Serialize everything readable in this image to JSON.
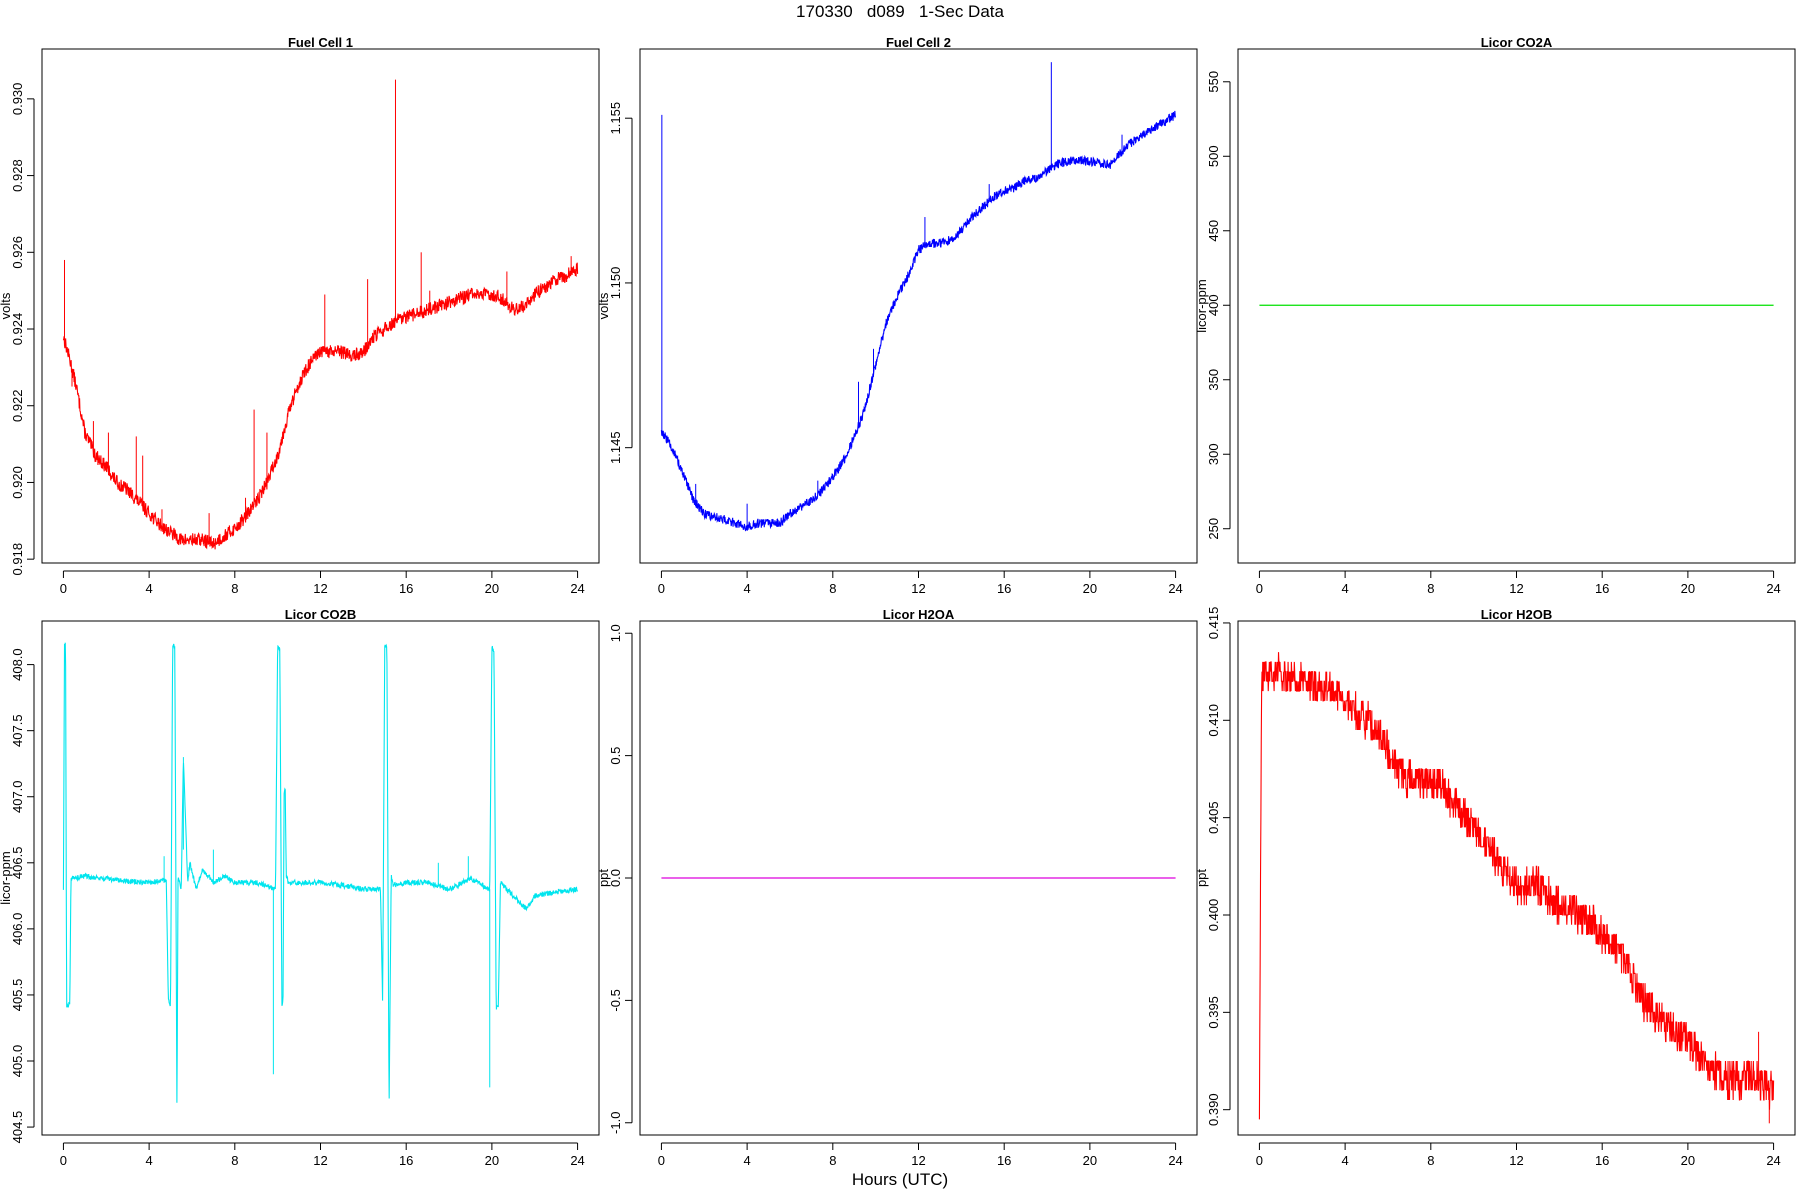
{
  "page_title": "170330   d089   1-Sec Data",
  "x_axis_label": "Hours (UTC)",
  "chart_data": [
    {
      "type": "line",
      "title": "Fuel Cell 1",
      "ylabel": "volts",
      "xlim": [
        -1,
        25
      ],
      "ylim": [
        0.9179,
        0.9313
      ],
      "xticks": [
        0,
        4,
        8,
        12,
        16,
        20,
        24
      ],
      "yticks": [
        0.918,
        0.92,
        0.922,
        0.924,
        0.926,
        0.928,
        0.93
      ],
      "ytick_labels": [
        "0.918",
        "0.920",
        "0.922",
        "0.924",
        "0.926",
        "0.928",
        "0.930"
      ],
      "color": "#ff0000",
      "x": [
        0,
        0.3,
        0.6,
        1,
        1.5,
        2,
        2.5,
        3,
        3.5,
        4,
        4.5,
        5,
        5.5,
        6,
        6.5,
        7,
        7.5,
        8,
        8.5,
        9,
        9.5,
        10,
        10.5,
        11,
        11.5,
        12,
        12.5,
        13,
        13.5,
        14,
        14.5,
        15,
        15.5,
        16,
        16.5,
        17,
        17.5,
        18,
        18.5,
        19,
        19.5,
        20,
        20.5,
        21,
        21.5,
        22,
        22.5,
        23,
        23.5,
        24
      ],
      "y": [
        0.9238,
        0.9232,
        0.9225,
        0.9213,
        0.9207,
        0.9204,
        0.92,
        0.9198,
        0.9195,
        0.9192,
        0.9189,
        0.9187,
        0.9185,
        0.9185,
        0.9185,
        0.9184,
        0.9186,
        0.9188,
        0.9191,
        0.9195,
        0.92,
        0.9207,
        0.9218,
        0.9226,
        0.9231,
        0.9234,
        0.9234,
        0.9234,
        0.9233,
        0.9234,
        0.9238,
        0.924,
        0.9242,
        0.9243,
        0.9244,
        0.9245,
        0.9246,
        0.9247,
        0.9248,
        0.9249,
        0.9249,
        0.9249,
        0.9248,
        0.9245,
        0.9246,
        0.9249,
        0.9251,
        0.9253,
        0.9254,
        0.9256
      ],
      "noise": 0.00018,
      "spikes": [
        [
          0.05,
          0.9258
        ],
        [
          0.4,
          0.9225
        ],
        [
          1.4,
          0.9216
        ],
        [
          2.1,
          0.9213
        ],
        [
          3.4,
          0.9212
        ],
        [
          3.7,
          0.9207
        ],
        [
          4.6,
          0.9193
        ],
        [
          6.8,
          0.9192
        ],
        [
          8.5,
          0.9196
        ],
        [
          8.9,
          0.9219
        ],
        [
          9.5,
          0.9213
        ],
        [
          12.2,
          0.9249
        ],
        [
          14.2,
          0.9253
        ],
        [
          15.5,
          0.9305
        ],
        [
          16.7,
          0.926
        ],
        [
          17.1,
          0.925
        ],
        [
          20.7,
          0.9255
        ],
        [
          23.7,
          0.9259
        ]
      ]
    },
    {
      "type": "line",
      "title": "Fuel Cell 2",
      "ylabel": "volts",
      "xlim": [
        -1,
        25
      ],
      "ylim": [
        1.1415,
        1.1571
      ],
      "xticks": [
        0,
        4,
        8,
        12,
        16,
        20,
        24
      ],
      "yticks": [
        1.145,
        1.15,
        1.155
      ],
      "ytick_labels": [
        "1.145",
        "1.150",
        "1.155"
      ],
      "color": "#0000ff",
      "x": [
        0,
        0.5,
        1,
        1.5,
        2,
        2.5,
        3,
        3.5,
        4,
        4.5,
        5,
        5.5,
        6,
        6.5,
        7,
        7.5,
        8,
        8.5,
        9,
        9.5,
        10,
        10.5,
        11,
        11.5,
        12,
        12.5,
        13,
        13.5,
        14,
        14.5,
        15,
        15.5,
        16,
        16.5,
        17,
        17.5,
        18,
        18.5,
        19,
        19.5,
        20,
        20.5,
        21,
        21.5,
        22,
        22.5,
        23,
        23.5,
        24
      ],
      "y": [
        1.1455,
        1.145,
        1.1442,
        1.1434,
        1.143,
        1.1429,
        1.1428,
        1.1427,
        1.1426,
        1.1427,
        1.1427,
        1.1427,
        1.143,
        1.1432,
        1.1434,
        1.1437,
        1.1441,
        1.1446,
        1.1453,
        1.1462,
        1.1475,
        1.1488,
        1.1496,
        1.1502,
        1.151,
        1.1512,
        1.1512,
        1.1513,
        1.1516,
        1.152,
        1.1523,
        1.1526,
        1.1528,
        1.1529,
        1.1531,
        1.1532,
        1.1534,
        1.1536,
        1.1537,
        1.1537,
        1.1537,
        1.1536,
        1.1536,
        1.154,
        1.1543,
        1.1545,
        1.1547,
        1.1549,
        1.1551
      ],
      "noise": 0.00014,
      "spikes": [
        [
          0.02,
          1.1551
        ],
        [
          1.6,
          1.1439
        ],
        [
          4.0,
          1.1433
        ],
        [
          7.3,
          1.144
        ],
        [
          9.2,
          1.147
        ],
        [
          9.9,
          1.148
        ],
        [
          12.3,
          1.152
        ],
        [
          15.3,
          1.153
        ],
        [
          18.2,
          1.1567
        ],
        [
          21.5,
          1.1545
        ]
      ]
    },
    {
      "type": "line",
      "title": "Licor CO2A",
      "ylabel": "licor-ppm",
      "xlim": [
        -1,
        25
      ],
      "ylim": [
        227,
        572
      ],
      "xticks": [
        0,
        4,
        8,
        12,
        16,
        20,
        24
      ],
      "yticks": [
        250,
        300,
        350,
        400,
        450,
        500,
        550
      ],
      "ytick_labels": [
        "250",
        "300",
        "350",
        "400",
        "450",
        "500",
        "550"
      ],
      "color": "#00e000",
      "x": [
        0,
        24
      ],
      "y": [
        400,
        400
      ],
      "noise": 0,
      "spikes": []
    },
    {
      "type": "line",
      "title": "Licor CO2B",
      "ylabel": "licor-ppm",
      "xlim": [
        -1,
        25
      ],
      "ylim": [
        404.44,
        408.33
      ],
      "xticks": [
        0,
        4,
        8,
        12,
        16,
        20,
        24
      ],
      "yticks": [
        404.5,
        405.0,
        405.5,
        406.0,
        406.5,
        407.0,
        407.5,
        408.0
      ],
      "ytick_labels": [
        "404.5",
        "405.0",
        "405.5",
        "406.0",
        "406.5",
        "407.0",
        "407.5",
        "408.0"
      ],
      "color": "#00e5ee",
      "x": [
        0,
        0.05,
        0.1,
        0.15,
        0.3,
        0.35,
        1,
        2,
        3,
        4,
        4.8,
        4.9,
        5.0,
        5.1,
        5.2,
        5.3,
        5.35,
        5.5,
        5.6,
        5.8,
        5.9,
        6.2,
        6.5,
        7.0,
        7.5,
        8,
        9,
        9.9,
        10.0,
        10.1,
        10.2,
        10.25,
        10.3,
        10.35,
        10.4,
        10.5,
        11,
        12,
        13,
        14,
        14.8,
        14.9,
        15.0,
        15.1,
        15.2,
        15.3,
        15.4,
        16,
        17,
        18,
        19,
        19.9,
        20.0,
        20.1,
        20.2,
        20.3,
        20.4,
        21,
        21.6,
        22,
        23,
        24
      ],
      "y": [
        406.3,
        408.15,
        408.15,
        405.4,
        405.45,
        406.38,
        406.4,
        406.38,
        406.36,
        406.35,
        406.37,
        405.45,
        405.42,
        408.15,
        408.12,
        404.6,
        406.4,
        406.3,
        407.3,
        406.35,
        406.5,
        406.3,
        406.45,
        406.35,
        406.4,
        406.35,
        406.35,
        406.3,
        408.15,
        408.12,
        405.4,
        405.45,
        407.0,
        407.1,
        406.4,
        406.35,
        406.35,
        406.35,
        406.33,
        406.3,
        406.3,
        405.45,
        408.15,
        408.12,
        404.62,
        406.4,
        406.33,
        406.35,
        406.35,
        406.3,
        406.38,
        406.3,
        408.13,
        408.1,
        405.4,
        405.42,
        406.35,
        406.25,
        406.15,
        406.25,
        406.28,
        406.3
      ],
      "noise": 0.02,
      "spikes": [
        [
          4.7,
          406.55
        ],
        [
          5.6,
          406.6
        ],
        [
          7.0,
          406.6
        ],
        [
          9.8,
          404.9
        ],
        [
          17.5,
          406.5
        ],
        [
          18.9,
          406.55
        ],
        [
          19.9,
          404.8
        ]
      ]
    },
    {
      "type": "line",
      "title": "Licor H2OA",
      "ylabel": "ppt",
      "xlim": [
        -1,
        25
      ],
      "ylim": [
        -1.05,
        1.05
      ],
      "xticks": [
        0,
        4,
        8,
        12,
        16,
        20,
        24
      ],
      "yticks": [
        -1.0,
        -0.5,
        0.0,
        0.5,
        1.0
      ],
      "ytick_labels": [
        "-1.0",
        "-0.5",
        "0.0",
        "0.5",
        "1.0"
      ],
      "color": "#dd00dd",
      "x": [
        0,
        24
      ],
      "y": [
        0,
        0
      ],
      "noise": 0,
      "spikes": []
    },
    {
      "type": "line",
      "title": "Licor H2OB",
      "ylabel": "ppt",
      "xlim": [
        -1,
        25
      ],
      "ylim": [
        0.3887,
        0.4151
      ],
      "xticks": [
        0,
        4,
        8,
        12,
        16,
        20,
        24
      ],
      "yticks": [
        0.39,
        0.395,
        0.4,
        0.405,
        0.41,
        0.415
      ],
      "ytick_labels": [
        "0.390",
        "0.395",
        "0.400",
        "0.405",
        "0.410",
        "0.415"
      ],
      "color": "#ff0000",
      "x": [
        0,
        0.1,
        0.2,
        1,
        2,
        3,
        3.5,
        4,
        4.5,
        5,
        5.5,
        6,
        6.5,
        7,
        7.5,
        8,
        8.5,
        9,
        9.5,
        10,
        10.5,
        11,
        11.5,
        12,
        12.5,
        13,
        13.5,
        14,
        14.5,
        15,
        15.5,
        16,
        16.5,
        17,
        17.5,
        18,
        18.5,
        19,
        19.5,
        20,
        20.5,
        21,
        21.5,
        22,
        22.5,
        23,
        23.5,
        24
      ],
      "y": [
        0.39,
        0.4115,
        0.4125,
        0.4125,
        0.412,
        0.4115,
        0.4115,
        0.411,
        0.4105,
        0.41,
        0.4095,
        0.4085,
        0.4075,
        0.407,
        0.407,
        0.4068,
        0.4065,
        0.406,
        0.405,
        0.4045,
        0.404,
        0.403,
        0.402,
        0.4015,
        0.4015,
        0.4015,
        0.401,
        0.4005,
        0.4005,
        0.4,
        0.3995,
        0.399,
        0.3985,
        0.3978,
        0.3965,
        0.3955,
        0.395,
        0.3945,
        0.394,
        0.3935,
        0.3928,
        0.392,
        0.3918,
        0.3915,
        0.3915,
        0.3918,
        0.3913,
        0.391
      ],
      "noise": 0.0009,
      "quantize": 0.0005,
      "spikes": [
        [
          23.3,
          0.394
        ],
        [
          23.8,
          0.3893
        ]
      ]
    }
  ]
}
